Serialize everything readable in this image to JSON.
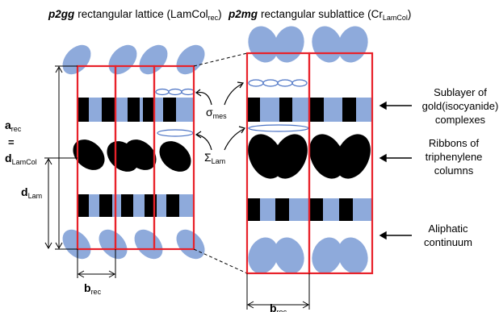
{
  "titles": {
    "left_group": "p2gg",
    "left_text": "rectangular lattice (LamCol",
    "left_sub": "rec",
    "left_close": ")",
    "right_group": "p2mg",
    "right_text": "rectangular sublattice (Cr",
    "right_sub": "LamCol",
    "right_close": ")"
  },
  "labels": {
    "a_main": "a",
    "a_sub": "rec",
    "equals": "=",
    "d_main": "d",
    "d_sub": "LamCol",
    "dlam_main": "d",
    "dlam_sub": "Lam",
    "sigma_main": "σ",
    "sigma_sub": "mes",
    "Sigma_main": "Σ",
    "Sigma_sub": "Lam",
    "brec_left_main": "b",
    "brec_left_sub": "rec",
    "brec_right_main": "b",
    "brec_right_sub": "rec"
  },
  "annotations": {
    "sublayer_1": "Sublayer of",
    "sublayer_2": "gold(isocyanide)",
    "sublayer_3": "complexes",
    "ribbons_1": "Ribbons of",
    "ribbons_2": "triphenylene",
    "ribbons_3": "columns",
    "aliphatic_1": "Aliphatic",
    "aliphatic_2": "continuum"
  },
  "colors": {
    "lattice_line": "#e8222a",
    "blue_fill": "#8eaadb",
    "blue_stroke": "#4a72c4",
    "black": "#000000"
  }
}
